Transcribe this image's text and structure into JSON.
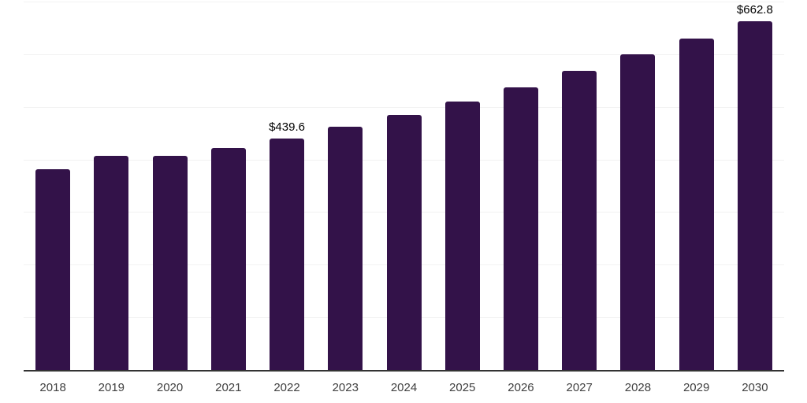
{
  "chart_data": {
    "type": "bar",
    "title": "",
    "xlabel": "",
    "ylabel": "",
    "categories": [
      "2018",
      "2019",
      "2020",
      "2021",
      "2022",
      "2023",
      "2024",
      "2025",
      "2026",
      "2027",
      "2028",
      "2029",
      "2030"
    ],
    "values": [
      382.0,
      407.2,
      407.2,
      421.5,
      439.6,
      462.0,
      484.4,
      509.5,
      536.9,
      567.8,
      599.1,
      630.0,
      662.8
    ],
    "point_labels": [
      "",
      "",
      "",
      "",
      "$439.6",
      "",
      "",
      "",
      "",
      "",
      "",
      "",
      "$662.8"
    ],
    "ylim": [
      0,
      700
    ],
    "grid_step": 100,
    "grid": "on",
    "legend": "none",
    "colors": {
      "bar": "#331249",
      "axis_line": "#333333",
      "gridline": "#f2f2f2",
      "tick_label": "#404040",
      "value_label": "#000000",
      "background": "#ffffff"
    }
  }
}
